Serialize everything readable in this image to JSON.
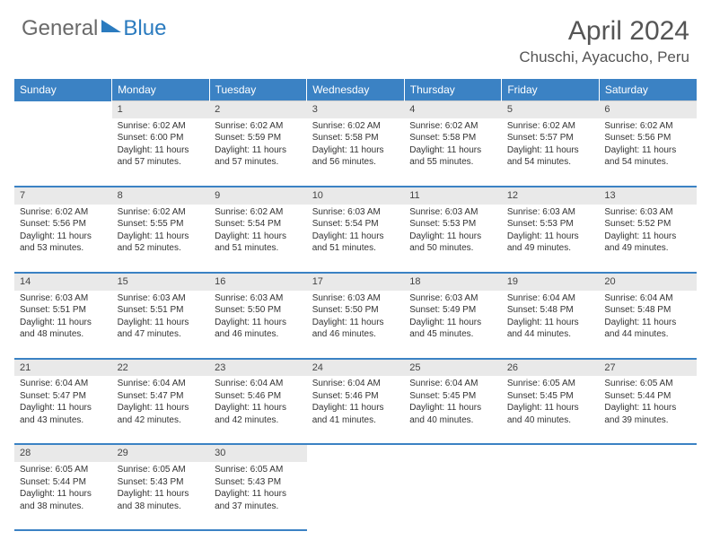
{
  "logo": {
    "part1": "General",
    "part2": "Blue"
  },
  "title": "April 2024",
  "location": "Chuschi, Ayacucho, Peru",
  "colors": {
    "header_bg": "#3b82c4",
    "header_text": "#ffffff",
    "daynum_bg": "#e9e9e9",
    "row_border": "#3b82c4",
    "body_text": "#333333",
    "title_text": "#555555",
    "logo_gray": "#6a6a6a",
    "logo_blue": "#2b7bbf"
  },
  "dayHeaders": [
    "Sunday",
    "Monday",
    "Tuesday",
    "Wednesday",
    "Thursday",
    "Friday",
    "Saturday"
  ],
  "weeks": [
    {
      "nums": [
        "",
        "1",
        "2",
        "3",
        "4",
        "5",
        "6"
      ],
      "cells": [
        "",
        "Sunrise: 6:02 AM\nSunset: 6:00 PM\nDaylight: 11 hours and 57 minutes.",
        "Sunrise: 6:02 AM\nSunset: 5:59 PM\nDaylight: 11 hours and 57 minutes.",
        "Sunrise: 6:02 AM\nSunset: 5:58 PM\nDaylight: 11 hours and 56 minutes.",
        "Sunrise: 6:02 AM\nSunset: 5:58 PM\nDaylight: 11 hours and 55 minutes.",
        "Sunrise: 6:02 AM\nSunset: 5:57 PM\nDaylight: 11 hours and 54 minutes.",
        "Sunrise: 6:02 AM\nSunset: 5:56 PM\nDaylight: 11 hours and 54 minutes."
      ]
    },
    {
      "nums": [
        "7",
        "8",
        "9",
        "10",
        "11",
        "12",
        "13"
      ],
      "cells": [
        "Sunrise: 6:02 AM\nSunset: 5:56 PM\nDaylight: 11 hours and 53 minutes.",
        "Sunrise: 6:02 AM\nSunset: 5:55 PM\nDaylight: 11 hours and 52 minutes.",
        "Sunrise: 6:02 AM\nSunset: 5:54 PM\nDaylight: 11 hours and 51 minutes.",
        "Sunrise: 6:03 AM\nSunset: 5:54 PM\nDaylight: 11 hours and 51 minutes.",
        "Sunrise: 6:03 AM\nSunset: 5:53 PM\nDaylight: 11 hours and 50 minutes.",
        "Sunrise: 6:03 AM\nSunset: 5:53 PM\nDaylight: 11 hours and 49 minutes.",
        "Sunrise: 6:03 AM\nSunset: 5:52 PM\nDaylight: 11 hours and 49 minutes."
      ]
    },
    {
      "nums": [
        "14",
        "15",
        "16",
        "17",
        "18",
        "19",
        "20"
      ],
      "cells": [
        "Sunrise: 6:03 AM\nSunset: 5:51 PM\nDaylight: 11 hours and 48 minutes.",
        "Sunrise: 6:03 AM\nSunset: 5:51 PM\nDaylight: 11 hours and 47 minutes.",
        "Sunrise: 6:03 AM\nSunset: 5:50 PM\nDaylight: 11 hours and 46 minutes.",
        "Sunrise: 6:03 AM\nSunset: 5:50 PM\nDaylight: 11 hours and 46 minutes.",
        "Sunrise: 6:03 AM\nSunset: 5:49 PM\nDaylight: 11 hours and 45 minutes.",
        "Sunrise: 6:04 AM\nSunset: 5:48 PM\nDaylight: 11 hours and 44 minutes.",
        "Sunrise: 6:04 AM\nSunset: 5:48 PM\nDaylight: 11 hours and 44 minutes."
      ]
    },
    {
      "nums": [
        "21",
        "22",
        "23",
        "24",
        "25",
        "26",
        "27"
      ],
      "cells": [
        "Sunrise: 6:04 AM\nSunset: 5:47 PM\nDaylight: 11 hours and 43 minutes.",
        "Sunrise: 6:04 AM\nSunset: 5:47 PM\nDaylight: 11 hours and 42 minutes.",
        "Sunrise: 6:04 AM\nSunset: 5:46 PM\nDaylight: 11 hours and 42 minutes.",
        "Sunrise: 6:04 AM\nSunset: 5:46 PM\nDaylight: 11 hours and 41 minutes.",
        "Sunrise: 6:04 AM\nSunset: 5:45 PM\nDaylight: 11 hours and 40 minutes.",
        "Sunrise: 6:05 AM\nSunset: 5:45 PM\nDaylight: 11 hours and 40 minutes.",
        "Sunrise: 6:05 AM\nSunset: 5:44 PM\nDaylight: 11 hours and 39 minutes."
      ]
    },
    {
      "nums": [
        "28",
        "29",
        "30",
        "",
        "",
        "",
        ""
      ],
      "cells": [
        "Sunrise: 6:05 AM\nSunset: 5:44 PM\nDaylight: 11 hours and 38 minutes.",
        "Sunrise: 6:05 AM\nSunset: 5:43 PM\nDaylight: 11 hours and 38 minutes.",
        "Sunrise: 6:05 AM\nSunset: 5:43 PM\nDaylight: 11 hours and 37 minutes.",
        "",
        "",
        "",
        ""
      ]
    }
  ]
}
